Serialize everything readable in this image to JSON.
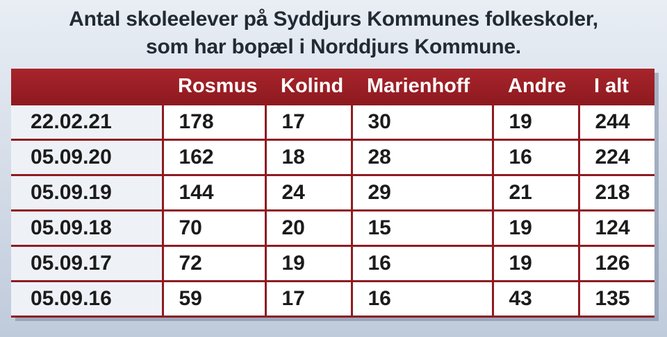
{
  "title": {
    "line1": "Antal skoleelever på Syddjurs Kommunes folkeskoler,",
    "line2": "som har bopæl i Norddjurs Kommune."
  },
  "table": {
    "headers": [
      "",
      "Rosmus",
      "Kolind",
      "Marienhoff",
      "Andre",
      "I alt"
    ],
    "rows": [
      [
        "22.02.21",
        "178",
        "17",
        "30",
        "19",
        "244"
      ],
      [
        "05.09.20",
        "162",
        "18",
        "28",
        "16",
        "224"
      ],
      [
        "05.09.19",
        "144",
        "24",
        "29",
        "21",
        "218"
      ],
      [
        "05.09.18",
        "70",
        "20",
        "15",
        "19",
        "124"
      ],
      [
        "05.09.17",
        "72",
        "19",
        "16",
        "19",
        "126"
      ],
      [
        "05.09.16",
        "59",
        "17",
        "16",
        "43",
        "135"
      ]
    ]
  },
  "colors": {
    "header_red": "#8f1b21",
    "background": "#d3dbe7",
    "text": "#1b1b1b"
  }
}
